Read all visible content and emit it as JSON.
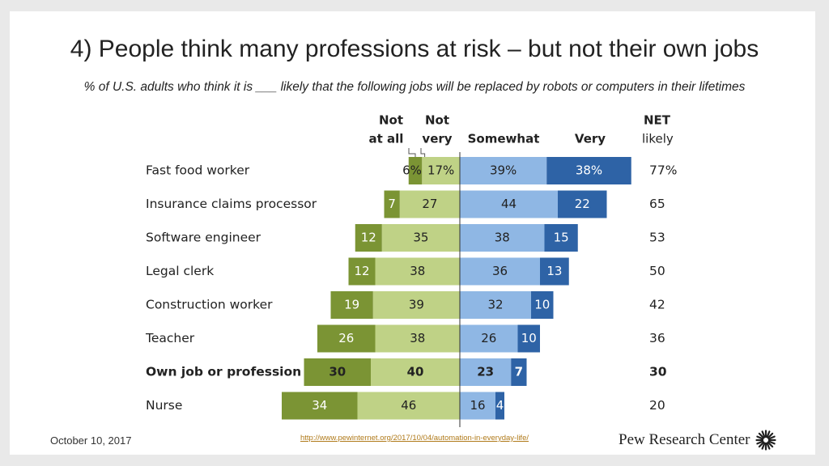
{
  "slide": {
    "title": "4) People think many professions at risk – but not their own jobs",
    "subtitle": "% of U.S. adults who think it is ___ likely that the following jobs will be replaced by robots or computers in their lifetimes"
  },
  "footer": {
    "date": "October 10, 2017",
    "url": "http://www.pewinternet.org/2017/10/04/automation-in-everyday-life/",
    "brand": "Pew Research Center",
    "brand_icon": "sunburst-logo-icon"
  },
  "colors": {
    "not_at_all": "#7b9434",
    "not_very": "#bfd286",
    "somewhat": "#8fb7e4",
    "very": "#2e63a6",
    "divider": "#333333"
  },
  "chart_data": {
    "type": "bar",
    "orientation": "horizontal-diverging",
    "legend_placement": "top",
    "column_headers": {
      "not_at_all": [
        "Not",
        "at all"
      ],
      "not_very": [
        "Not",
        "very"
      ],
      "somewhat": "Somewhat",
      "very": "Very",
      "net": [
        "NET",
        "likely"
      ]
    },
    "categories": [
      "Fast food worker",
      "Insurance claims processor",
      "Software engineer",
      "Legal clerk",
      "Construction worker",
      "Teacher",
      "Own job or profession",
      "Nurse"
    ],
    "highlight_index": 6,
    "series": [
      {
        "name": "Not at all",
        "side": "left",
        "values": [
          6,
          7,
          12,
          12,
          19,
          26,
          30,
          34
        ]
      },
      {
        "name": "Not very",
        "side": "left",
        "values": [
          17,
          27,
          35,
          38,
          39,
          38,
          40,
          46
        ]
      },
      {
        "name": "Somewhat",
        "side": "right",
        "values": [
          39,
          44,
          38,
          36,
          32,
          26,
          23,
          16
        ]
      },
      {
        "name": "Very",
        "side": "right",
        "values": [
          38,
          22,
          15,
          13,
          10,
          10,
          7,
          4
        ]
      }
    ],
    "net_likely": [
      77,
      65,
      53,
      50,
      42,
      36,
      30,
      20
    ],
    "labels": {
      "not_at_all": [
        "6%",
        "7",
        "12",
        "12",
        "19",
        "26",
        "30",
        "34"
      ],
      "not_very": [
        "17%",
        "27",
        "35",
        "38",
        "39",
        "38",
        "40",
        "46"
      ],
      "somewhat": [
        "39%",
        "44",
        "38",
        "36",
        "32",
        "26",
        "23",
        "16"
      ],
      "very": [
        "38%",
        "22",
        "15",
        "13",
        "10",
        "10",
        "7",
        "4"
      ],
      "net": [
        "77%",
        "65",
        "53",
        "50",
        "42",
        "36",
        "30",
        "20"
      ]
    }
  }
}
